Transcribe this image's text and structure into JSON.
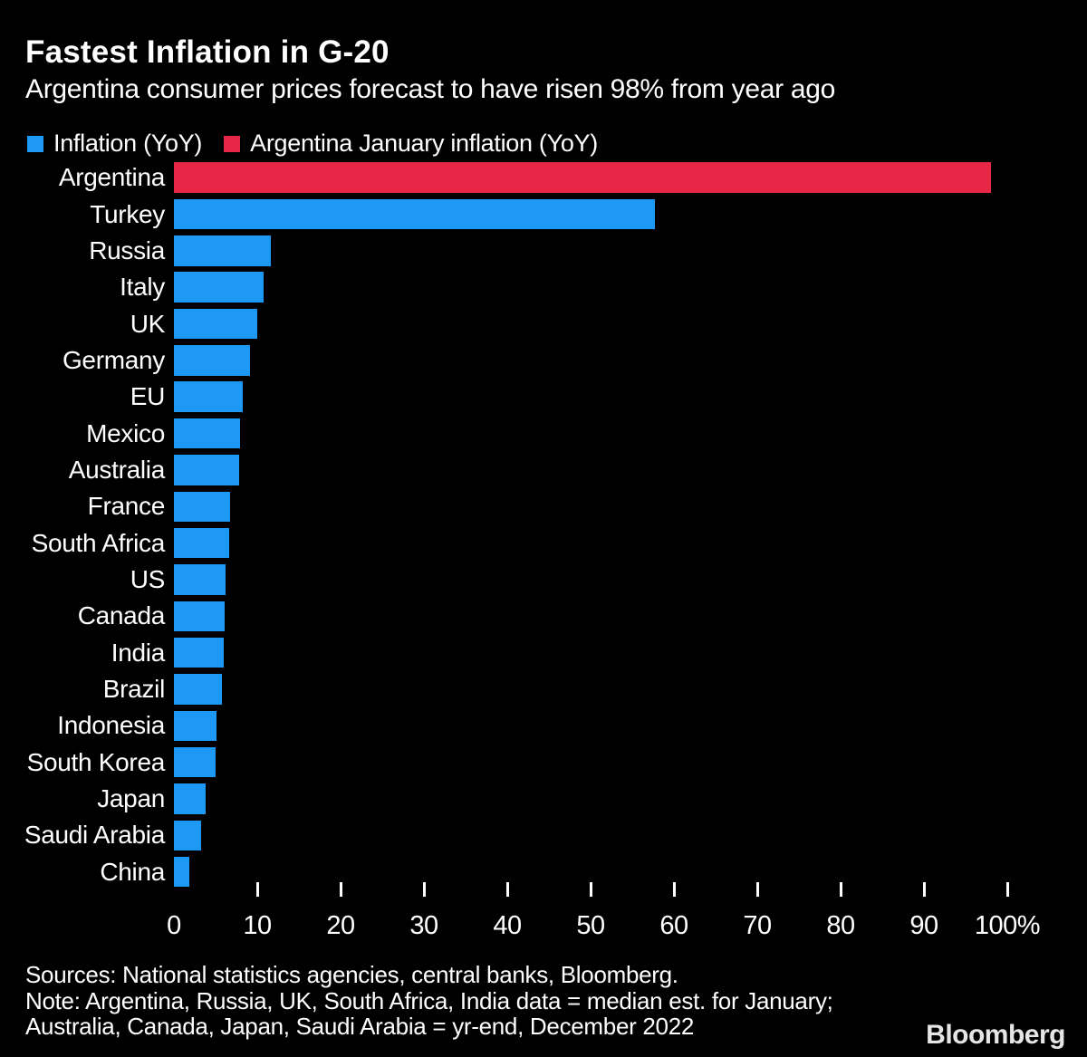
{
  "header": {
    "title": "Fastest Inflation in G-20",
    "subtitle": "Argentina consumer prices forecast to have risen 98% from year ago"
  },
  "legend": [
    {
      "label": "Inflation (YoY)",
      "color": "#1e98f5"
    },
    {
      "label": "Argentina January inflation (YoY)",
      "color": "#e82646"
    }
  ],
  "chart_data": {
    "type": "bar",
    "orientation": "horizontal",
    "title": "Fastest Inflation in G-20",
    "subtitle": "Argentina consumer prices forecast to have risen 98% from year ago",
    "unit": "%",
    "categories": [
      "Argentina",
      "Turkey",
      "Russia",
      "Italy",
      "UK",
      "Germany",
      "EU",
      "Mexico",
      "Australia",
      "France",
      "South Africa",
      "US",
      "Canada",
      "India",
      "Brazil",
      "Indonesia",
      "South Korea",
      "Japan",
      "Saudi Arabia",
      "China"
    ],
    "values": [
      98,
      57.7,
      11.6,
      10.8,
      10.0,
      9.1,
      8.3,
      7.9,
      7.8,
      6.7,
      6.6,
      6.2,
      6.1,
      6.0,
      5.8,
      5.1,
      5.0,
      3.8,
      3.3,
      1.9
    ],
    "highlight_category": "Argentina",
    "colors": {
      "default": "#1e98f5",
      "highlight": "#e82646"
    },
    "xlim": [
      0,
      105
    ],
    "x_tick_values": [
      0,
      10,
      20,
      30,
      40,
      50,
      60,
      70,
      80,
      90,
      100
    ],
    "x_tick_labels": [
      "0",
      "10",
      "20",
      "30",
      "40",
      "50",
      "60",
      "70",
      "80",
      "90",
      "100%"
    ],
    "grid": false,
    "legend_position": "top-left",
    "background": "#000000"
  },
  "footer": {
    "sources": "Sources: National statistics agencies, central banks, Bloomberg.",
    "note_line1": "Note: Argentina, Russia, UK, South Africa, India data = median est. for January;",
    "note_line2": "Australia, Canada, Japan, Saudi Arabia = yr-end, December 2022",
    "brand": "Bloomberg"
  }
}
